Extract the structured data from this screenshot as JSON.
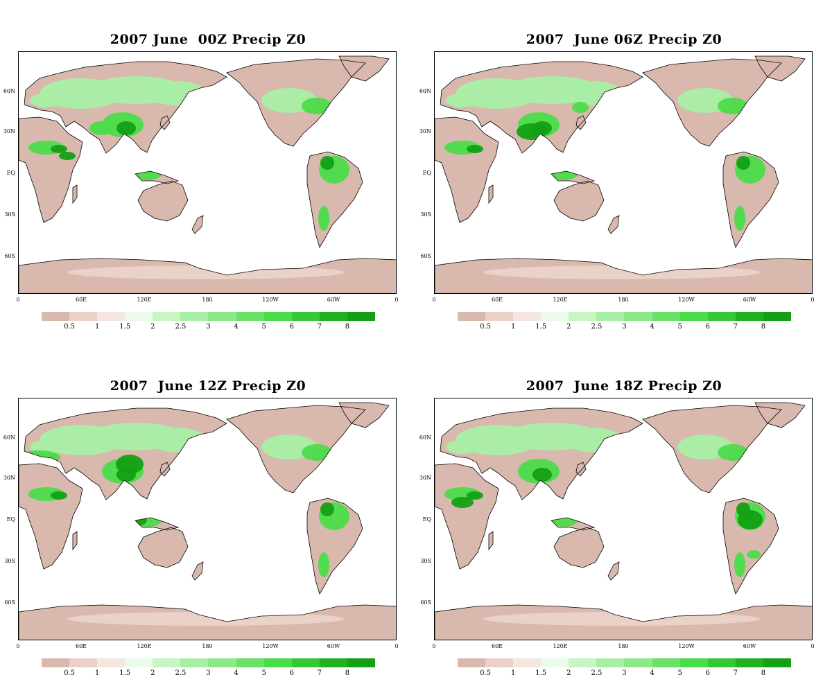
{
  "panels": [
    {
      "title": "2007 June  00Z Precip Z0"
    },
    {
      "title": "2007  June 06Z Precip Z0"
    },
    {
      "title": "2007  June 12Z Precip Z0"
    },
    {
      "title": "2007  June 18Z Precip Z0"
    }
  ],
  "lat_labels": [
    "60N",
    "30N",
    "EQ",
    "30S",
    "60S"
  ],
  "lon_labels": [
    "0",
    "60E",
    "120E",
    "180",
    "120W",
    "60W",
    "0"
  ],
  "colorbar": {
    "labels": [
      "0.5",
      "1",
      "1.5",
      "2",
      "2.5",
      "3",
      "4",
      "5",
      "6",
      "7",
      "8"
    ],
    "colors": [
      "#d9b8ad",
      "#ead2c8",
      "#f5e7e0",
      "#eafbea",
      "#c8f5c4",
      "#a9eea6",
      "#8de888",
      "#6ae266",
      "#4bdc4a",
      "#34c834",
      "#20b020",
      "#14a014"
    ]
  },
  "colors": {
    "land_dry": "#d9b8ad",
    "land_light": "#ead2c8",
    "precip_light": "#a9eea6",
    "precip_mid": "#4bdc4a",
    "precip_heavy": "#14a014",
    "ocean": "#ffffff",
    "coastline": "#000000"
  }
}
